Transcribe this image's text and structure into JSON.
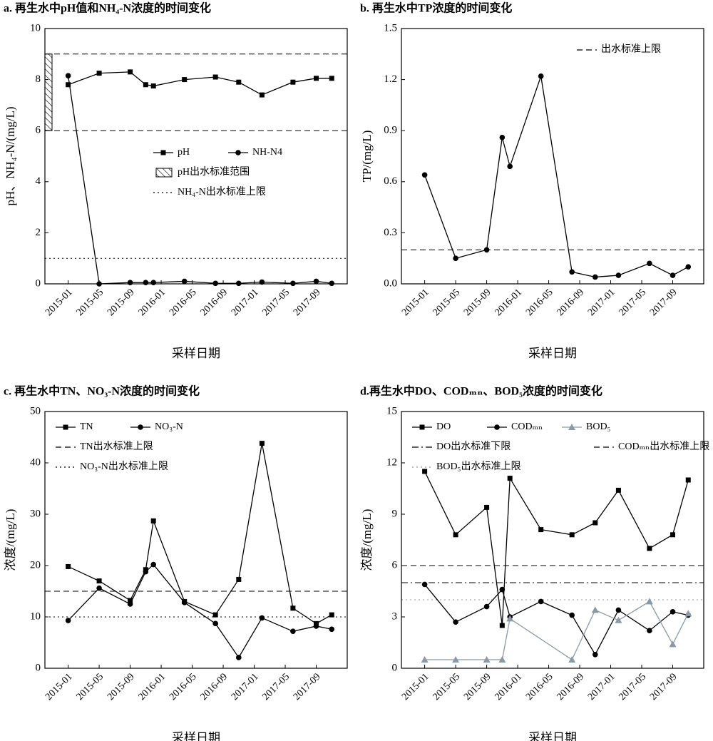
{
  "chart_data": [
    {
      "type": "line",
      "title": "a. 再生水中pH值和NH₄-N浓度的时间变化",
      "xlabel": "采样日期",
      "ylabel": "pH、NH₄-N/(mg/L)",
      "x": [
        "2015-01",
        "2015-05",
        "2015-09",
        "2015-11",
        "2015-12",
        "2016-04",
        "2016-08",
        "2016-11",
        "2017-02",
        "2017-06",
        "2017-09",
        "2017-11"
      ],
      "xlim": [
        "2014-10",
        "2018-01"
      ],
      "xticks": [
        "2015-01",
        "2015-05",
        "2015-09",
        "2016-01",
        "2016-05",
        "2016-09",
        "2017-01",
        "2017-05",
        "2017-09"
      ],
      "ylim": [
        0,
        10
      ],
      "yticks": [
        0,
        2,
        4,
        6,
        8,
        10
      ],
      "series": [
        {
          "name": "pH",
          "color": "#000000",
          "marker": "square",
          "values": [
            7.8,
            8.25,
            8.3,
            7.8,
            7.75,
            8.0,
            8.1,
            7.9,
            7.4,
            7.9,
            8.05,
            8.05
          ]
        },
        {
          "name": "NH-N4",
          "color": "#000000",
          "marker": "circle",
          "values": [
            8.15,
            0.0,
            0.05,
            0.05,
            0.05,
            0.1,
            0.02,
            0.02,
            0.07,
            0.02,
            0.1,
            0.02
          ]
        }
      ],
      "bands": [
        {
          "name": "pH出水标准范围",
          "range": [
            6,
            9
          ],
          "color": "#000000",
          "dash": "dashed"
        }
      ],
      "reference_lines": [
        {
          "name": "NH₄-N出水标准上限",
          "value": 1,
          "color": "#000000",
          "dash": "dotted"
        }
      ],
      "legend_loc": "center right"
    },
    {
      "type": "line",
      "title": "b. 再生水中TP浓度的时间变化",
      "xlabel": "采样日期",
      "ylabel": "TP/(mg/L)",
      "x": [
        "2015-01",
        "2015-05",
        "2015-09",
        "2015-11",
        "2015-12",
        "2016-04",
        "2016-08",
        "2016-11",
        "2017-02",
        "2017-06",
        "2017-09",
        "2017-11"
      ],
      "xlim": [
        "2014-10",
        "2018-01"
      ],
      "xticks": [
        "2015-01",
        "2015-05",
        "2015-09",
        "2016-01",
        "2016-05",
        "2016-09",
        "2017-01",
        "2017-05",
        "2017-09"
      ],
      "ylim": [
        0,
        1.5
      ],
      "yticks": [
        {
          "value": 0,
          "label": "0.0"
        },
        0.3,
        0.6,
        0.9,
        1.2,
        1.5
      ],
      "series": [
        {
          "name": "TP",
          "color": "#000000",
          "marker": "circle",
          "values": [
            0.64,
            0.15,
            0.2,
            0.86,
            0.69,
            1.22,
            0.07,
            0.04,
            0.05,
            0.12,
            0.05,
            0.1
          ],
          "in_legend": false
        }
      ],
      "reference_lines": [
        {
          "name": "出水标准上限",
          "value": 0.2,
          "color": "#000000",
          "dash": "dashed"
        }
      ],
      "legend_loc": "upper right"
    },
    {
      "type": "line",
      "title": "c. 再生水中TN、NO₃-N浓度的时间变化",
      "xlabel": "采样日期",
      "ylabel": "浓度/(mg/L)",
      "x": [
        "2015-01",
        "2015-05",
        "2015-09",
        "2015-11",
        "2015-12",
        "2016-04",
        "2016-08",
        "2016-11",
        "2017-02",
        "2017-06",
        "2017-09",
        "2017-11"
      ],
      "xlim": [
        "2014-10",
        "2018-01"
      ],
      "xticks": [
        "2015-01",
        "2015-05",
        "2015-09",
        "2016-01",
        "2016-05",
        "2016-09",
        "2017-01",
        "2017-05",
        "2017-09"
      ],
      "ylim": [
        0,
        50
      ],
      "yticks": [
        0,
        10,
        20,
        30,
        40,
        50
      ],
      "series": [
        {
          "name": "TN",
          "color": "#000000",
          "marker": "square",
          "values": [
            19.8,
            17.0,
            13.2,
            19.2,
            28.7,
            13.0,
            10.4,
            17.3,
            43.8,
            11.7,
            8.7,
            10.4
          ]
        },
        {
          "name": "NO₃-N",
          "color": "#000000",
          "marker": "circle",
          "values": [
            9.3,
            15.6,
            12.5,
            18.8,
            20.2,
            12.8,
            8.7,
            2.1,
            9.8,
            7.2,
            8.2,
            7.6
          ]
        }
      ],
      "reference_lines": [
        {
          "name": "TN出水标准上限",
          "value": 15,
          "color": "#000000",
          "dash": "dashed"
        },
        {
          "name": "NO₃-N出水标准上限",
          "value": 10,
          "color": "#000000",
          "dash": "dotted"
        }
      ],
      "legend_loc": "upper left"
    },
    {
      "type": "line",
      "title": "d.再生水中DO、CODₘₙ、BOD₅浓度的时间变化",
      "xlabel": "采样日期",
      "ylabel": "浓度/(mg/L)",
      "x": [
        "2015-01",
        "2015-05",
        "2015-09",
        "2015-11",
        "2015-12",
        "2016-04",
        "2016-08",
        "2016-11",
        "2017-02",
        "2017-06",
        "2017-09",
        "2017-11"
      ],
      "xlim": [
        "2014-10",
        "2018-01"
      ],
      "xticks": [
        "2015-01",
        "2015-05",
        "2015-09",
        "2016-01",
        "2016-05",
        "2016-09",
        "2017-01",
        "2017-05",
        "2017-09"
      ],
      "ylim": [
        0,
        15
      ],
      "yticks": [
        0,
        3,
        6,
        9,
        12,
        15
      ],
      "series": [
        {
          "name": "DO",
          "color": "#000000",
          "marker": "square",
          "values": [
            11.5,
            7.8,
            9.4,
            2.5,
            11.1,
            8.1,
            7.8,
            8.5,
            10.4,
            7.0,
            7.8,
            11.0
          ]
        },
        {
          "name": "CODₘₙ",
          "color": "#000000",
          "marker": "circle",
          "values": [
            4.9,
            2.7,
            3.6,
            4.6,
            3.0,
            3.9,
            3.1,
            0.8,
            3.4,
            2.2,
            3.3,
            3.1
          ]
        },
        {
          "name": "BOD₅",
          "color": "#8a9aa5",
          "marker": "triangle",
          "x": [
            "2015-01",
            "2015-05",
            "2015-09",
            "2015-11",
            "2015-12",
            "2016-08",
            "2016-11",
            "2017-02",
            "2017-06",
            "2017-09",
            "2017-11"
          ],
          "values": [
            0.5,
            0.5,
            0.5,
            0.5,
            2.9,
            0.5,
            3.4,
            2.8,
            3.9,
            1.4,
            3.2
          ]
        }
      ],
      "reference_lines": [
        {
          "name": "DO出水标准下限",
          "value": 5,
          "color": "#000000",
          "dash": "dashdot"
        },
        {
          "name": "CODₘₙ出水标准上限",
          "value": 6,
          "color": "#000000",
          "dash": "dashed"
        },
        {
          "name": "BOD₅出水标准上限",
          "value": 4,
          "color": "#999999",
          "dash": "dotted"
        }
      ],
      "legend_loc": "upper left"
    }
  ]
}
